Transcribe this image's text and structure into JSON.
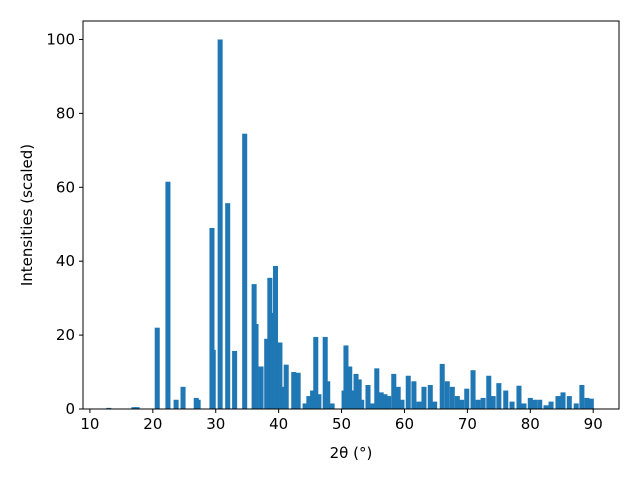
{
  "chart_data": {
    "type": "bar",
    "xlabel": "2θ (°)",
    "ylabel": "Intensities (scaled)",
    "x": [
      13.0,
      17.0,
      17.5,
      20.7,
      22.4,
      23.7,
      24.8,
      26.9,
      27.2,
      29.4,
      29.6,
      30.7,
      31.9,
      33.0,
      34.6,
      36.1,
      36.4,
      37.2,
      38.1,
      38.6,
      39.0,
      39.5,
      40.2,
      40.7,
      41.2,
      42.4,
      43.1,
      44.2,
      44.8,
      45.4,
      45.9,
      46.4,
      47.4,
      47.8,
      48.5,
      50.4,
      50.7,
      51.3,
      51.8,
      52.3,
      52.8,
      53.2,
      54.2,
      55.0,
      55.6,
      56.3,
      56.9,
      57.5,
      58.3,
      59.0,
      59.6,
      60.6,
      61.5,
      62.3,
      63.1,
      64.1,
      64.8,
      66.0,
      66.8,
      67.6,
      68.4,
      69.1,
      69.9,
      70.9,
      71.7,
      72.5,
      73.4,
      74.1,
      75.0,
      76.1,
      77.1,
      78.2,
      79.0,
      80.0,
      80.7,
      81.5,
      82.5,
      83.3,
      84.4,
      85.2,
      86.2,
      87.3,
      88.2,
      89.0,
      89.7
    ],
    "values": [
      0.3,
      0.5,
      0.5,
      22,
      61.5,
      2.5,
      6,
      3,
      2.5,
      49,
      16,
      100,
      55.7,
      15.7,
      74.5,
      33.8,
      23,
      11.5,
      19,
      35.5,
      26,
      38.7,
      18,
      6,
      12,
      10,
      9.8,
      1.5,
      3.5,
      5,
      19.5,
      4,
      19.5,
      7.5,
      1.5,
      5,
      17.2,
      11.5,
      5,
      9.5,
      8,
      2.5,
      6.5,
      1.5,
      11,
      4.5,
      4,
      3.5,
      9.5,
      6,
      2.5,
      9,
      7.5,
      2,
      6,
      6.5,
      2,
      12.2,
      7.5,
      6,
      3.5,
      2.5,
      5.5,
      10.5,
      2.5,
      3,
      9,
      3.5,
      7,
      5,
      2,
      6.3,
      1.5,
      3,
      2.5,
      2.5,
      1,
      2,
      3.5,
      4.5,
      3.5,
      1.5,
      6.5,
      3,
      2.8
    ],
    "bar_width": 0.8,
    "color": "#1f77b4",
    "xlim": [
      8.9,
      94.1
    ],
    "ylim": [
      0,
      105
    ],
    "xticks": [
      10,
      20,
      30,
      40,
      50,
      60,
      70,
      80,
      90
    ],
    "yticks": [
      0,
      20,
      40,
      60,
      80,
      100
    ]
  }
}
